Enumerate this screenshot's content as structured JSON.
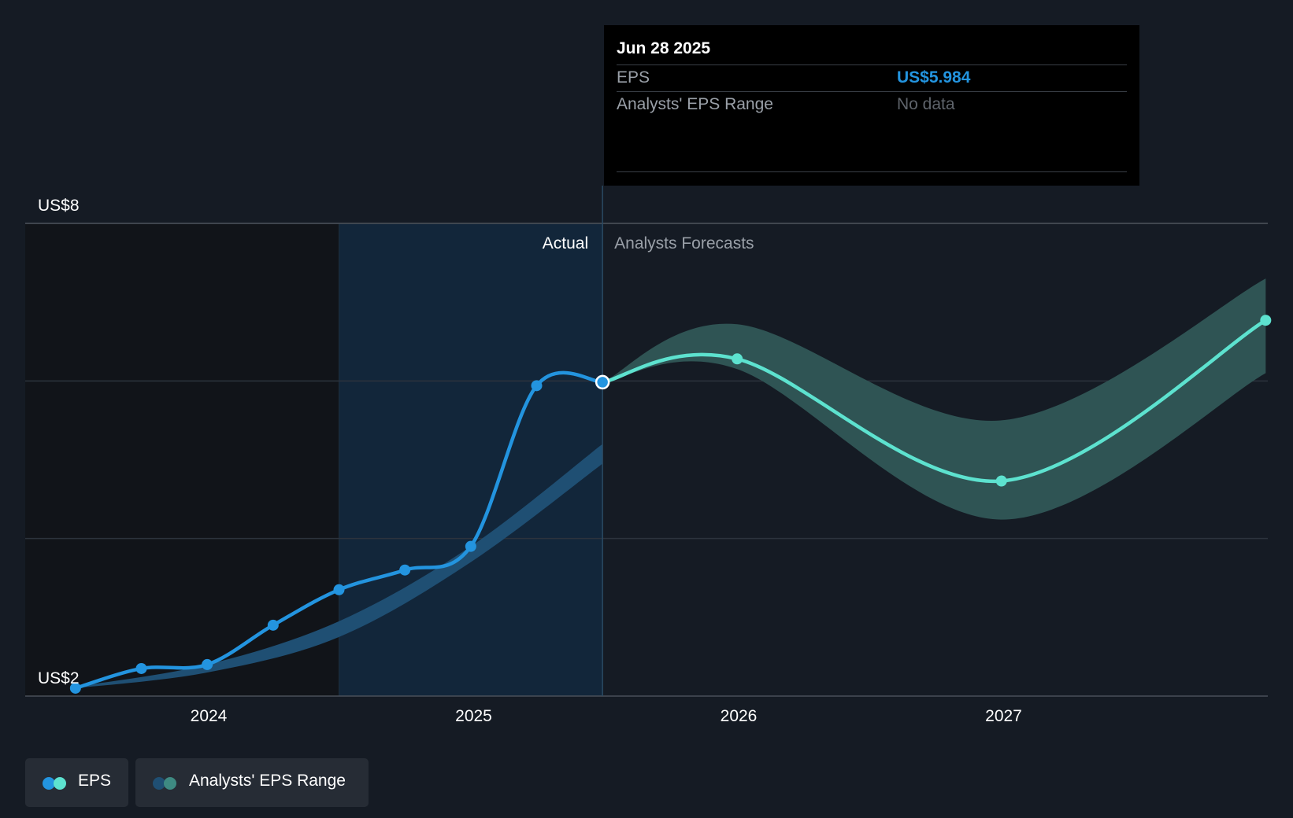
{
  "tooltip": {
    "date": "Jun 28 2025",
    "eps_label": "EPS",
    "eps_value": "US$5.984",
    "range_label": "Analysts' EPS Range",
    "range_value": "No data"
  },
  "legend": {
    "eps_label": "EPS",
    "range_label": "Analysts' EPS Range"
  },
  "colors": {
    "background": "#151b24",
    "actual_eps": "#2394df",
    "forecast_eps": "#5de2cf",
    "tooltip_value": "#2394df",
    "range_band": "#2f5454"
  },
  "chart_data": {
    "type": "line",
    "y_labels": [
      "US$8",
      "US$2"
    ],
    "section_labels": {
      "actual": "Actual",
      "forecast": "Analysts Forecasts"
    },
    "x_ticks": [
      "2024",
      "2025",
      "2026",
      "2027"
    ],
    "ylim": [
      2,
      8
    ],
    "grid": true,
    "series": [
      {
        "name": "EPS",
        "points": [
          {
            "x": "2023-07-01",
            "y": 2.1
          },
          {
            "x": "2023-09-30",
            "y": 2.35
          },
          {
            "x": "2023-12-30",
            "y": 2.4
          },
          {
            "x": "2024-03-30",
            "y": 2.9
          },
          {
            "x": "2024-06-29",
            "y": 3.35
          },
          {
            "x": "2024-09-28",
            "y": 3.6
          },
          {
            "x": "2024-12-28",
            "y": 3.9
          },
          {
            "x": "2025-03-29",
            "y": 5.94
          },
          {
            "x": "2025-06-28",
            "y": 5.984
          }
        ]
      },
      {
        "name": "EPS forecast",
        "points": [
          {
            "x": "2025-06-28",
            "y": 5.984
          },
          {
            "x": "2025-12-31",
            "y": 6.28
          },
          {
            "x": "2026-12-31",
            "y": 4.73
          },
          {
            "x": "2027-12-31",
            "y": 6.77
          }
        ]
      }
    ],
    "range_band_actual": [
      {
        "x": "2023-07-01",
        "lo": 2.1,
        "hi": 2.12
      },
      {
        "x": "2023-12-30",
        "lo": 2.3,
        "hi": 2.4
      },
      {
        "x": "2024-06-29",
        "lo": 2.75,
        "hi": 2.95
      },
      {
        "x": "2024-12-28",
        "lo": 3.7,
        "hi": 3.9
      },
      {
        "x": "2025-06-28",
        "lo": 4.95,
        "hi": 5.2
      }
    ],
    "range_band_forecast": [
      {
        "x": "2025-06-28",
        "lo": 5.98,
        "hi": 5.98
      },
      {
        "x": "2025-12-31",
        "lo": 6.15,
        "hi": 6.72
      },
      {
        "x": "2026-12-31",
        "lo": 4.24,
        "hi": 5.5
      },
      {
        "x": "2027-12-31",
        "lo": 6.1,
        "hi": 7.3
      }
    ],
    "selected_date": "2025-06-28"
  }
}
